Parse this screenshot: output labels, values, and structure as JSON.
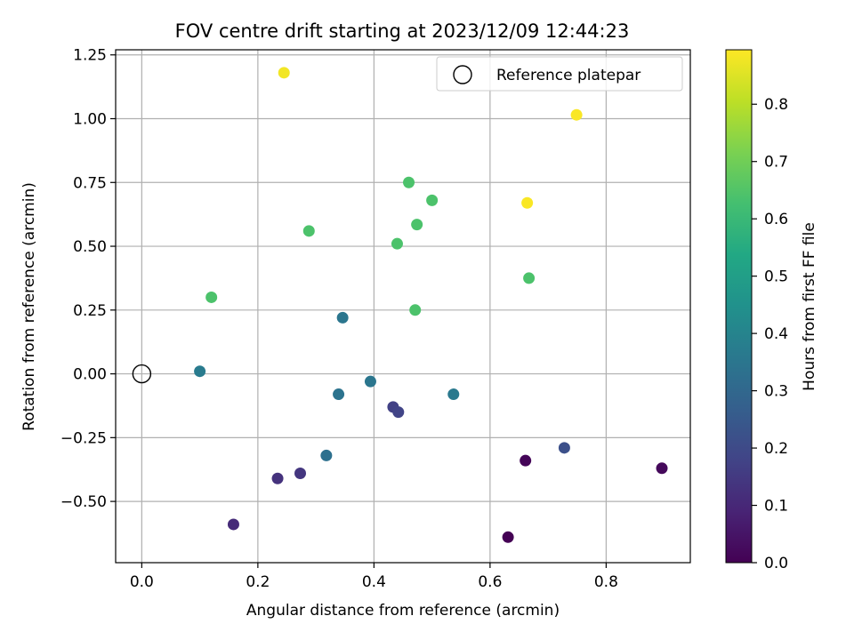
{
  "chart_data": {
    "type": "scatter",
    "title": "FOV centre drift starting at 2023/12/09 12:44:23",
    "xlabel": "Angular distance from reference (arcmin)",
    "ylabel": "Rotation from reference (arcmin)",
    "xlim": [
      -0.045,
      0.945
    ],
    "ylim": [
      -0.74,
      1.27
    ],
    "xticks": [
      0.0,
      0.2,
      0.4,
      0.6,
      0.8
    ],
    "xtick_labels": [
      "0.0",
      "0.2",
      "0.4",
      "0.6",
      "0.8"
    ],
    "yticks": [
      -0.5,
      -0.25,
      0.0,
      0.25,
      0.5,
      0.75,
      1.0,
      1.25
    ],
    "ytick_labels": [
      "−0.50",
      "−0.25",
      "0.00",
      "0.25",
      "0.50",
      "0.75",
      "1.00",
      "1.25"
    ],
    "grid": true,
    "colormap": "viridis",
    "colorbar": {
      "label": "Hours from first FF file",
      "range": [
        0.0,
        0.895
      ],
      "ticks": [
        0.0,
        0.1,
        0.2,
        0.3,
        0.4,
        0.5,
        0.6,
        0.7,
        0.8
      ],
      "tick_labels": [
        "0.0",
        "0.1",
        "0.2",
        "0.3",
        "0.4",
        "0.5",
        "0.6",
        "0.7",
        "0.8"
      ]
    },
    "legend": {
      "placement": "upper right",
      "entries": [
        "Reference platepar"
      ]
    },
    "reference_point": {
      "x": 0.0,
      "y": 0.0
    },
    "points": [
      {
        "x": 0.631,
        "y": -0.64,
        "c": 0.0
      },
      {
        "x": 0.661,
        "y": -0.34,
        "c": 0.01
      },
      {
        "x": 0.896,
        "y": -0.37,
        "c": 0.02
      },
      {
        "x": 0.158,
        "y": -0.59,
        "c": 0.11
      },
      {
        "x": 0.234,
        "y": -0.41,
        "c": 0.13
      },
      {
        "x": 0.273,
        "y": -0.39,
        "c": 0.14
      },
      {
        "x": 0.433,
        "y": -0.13,
        "c": 0.17
      },
      {
        "x": 0.442,
        "y": -0.15,
        "c": 0.18
      },
      {
        "x": 0.728,
        "y": -0.29,
        "c": 0.22
      },
      {
        "x": 0.318,
        "y": -0.32,
        "c": 0.33
      },
      {
        "x": 0.339,
        "y": -0.08,
        "c": 0.34
      },
      {
        "x": 0.394,
        "y": -0.03,
        "c": 0.35
      },
      {
        "x": 0.537,
        "y": -0.08,
        "c": 0.36
      },
      {
        "x": 0.346,
        "y": 0.22,
        "c": 0.35
      },
      {
        "x": 0.1,
        "y": 0.01,
        "c": 0.37
      },
      {
        "x": 0.12,
        "y": 0.3,
        "c": 0.64
      },
      {
        "x": 0.288,
        "y": 0.56,
        "c": 0.64
      },
      {
        "x": 0.44,
        "y": 0.51,
        "c": 0.64
      },
      {
        "x": 0.46,
        "y": 0.75,
        "c": 0.64
      },
      {
        "x": 0.471,
        "y": 0.25,
        "c": 0.64
      },
      {
        "x": 0.474,
        "y": 0.585,
        "c": 0.64
      },
      {
        "x": 0.5,
        "y": 0.68,
        "c": 0.64
      },
      {
        "x": 0.667,
        "y": 0.375,
        "c": 0.64
      },
      {
        "x": 0.245,
        "y": 1.18,
        "c": 0.88
      },
      {
        "x": 0.664,
        "y": 0.67,
        "c": 0.89
      },
      {
        "x": 0.749,
        "y": 1.015,
        "c": 0.89
      }
    ]
  }
}
